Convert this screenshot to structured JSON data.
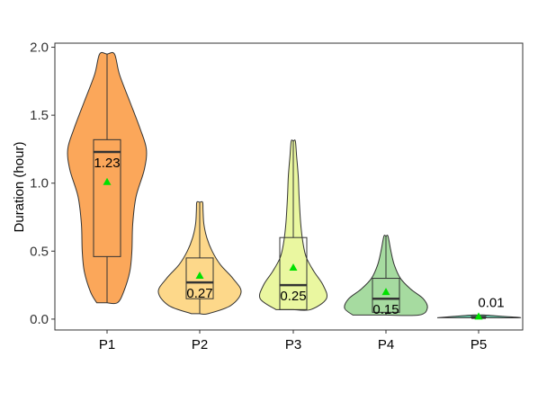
{
  "chart_data": {
    "type": "violin",
    "ylabel": "Duration (hour)",
    "xlabel": "",
    "ylim": [
      -0.08,
      2.03
    ],
    "yticks": [
      0.0,
      0.5,
      1.0,
      1.5,
      2.0
    ],
    "ytick_labels": [
      "0.0",
      "0.5",
      "1.0",
      "1.5",
      "2.0"
    ],
    "grid": false,
    "legend": "none",
    "mean_marker": {
      "shape": "triangle",
      "color": "#00e000"
    },
    "categories": [
      "P1",
      "P2",
      "P3",
      "P4",
      "P5"
    ],
    "series": [
      {
        "category": "P1",
        "color": "#fba75a",
        "min": 0.12,
        "q1": 0.46,
        "median": 1.23,
        "q3": 1.32,
        "max": 1.95,
        "mean": 1.01,
        "median_label": "1.23",
        "density": [
          [
            0.12,
            0.25
          ],
          [
            0.2,
            0.4
          ],
          [
            0.35,
            0.55
          ],
          [
            0.5,
            0.6
          ],
          [
            0.7,
            0.62
          ],
          [
            0.9,
            0.7
          ],
          [
            1.1,
            0.9
          ],
          [
            1.25,
            0.95
          ],
          [
            1.4,
            0.8
          ],
          [
            1.6,
            0.55
          ],
          [
            1.8,
            0.3
          ],
          [
            1.95,
            0.18
          ]
        ]
      },
      {
        "category": "P2",
        "color": "#fdd88a",
        "min": 0.04,
        "q1": 0.15,
        "median": 0.27,
        "q3": 0.45,
        "max": 0.86,
        "mean": 0.32,
        "median_label": "0.27",
        "density": [
          [
            0.04,
            0.2
          ],
          [
            0.1,
            0.75
          ],
          [
            0.2,
            1.0
          ],
          [
            0.3,
            0.8
          ],
          [
            0.4,
            0.5
          ],
          [
            0.5,
            0.3
          ],
          [
            0.6,
            0.17
          ],
          [
            0.7,
            0.1
          ],
          [
            0.8,
            0.08
          ],
          [
            0.86,
            0.07
          ]
        ]
      },
      {
        "category": "P3",
        "color": "#eaf7a0",
        "min": 0.07,
        "q1": 0.07,
        "median": 0.25,
        "q3": 0.6,
        "max": 1.31,
        "mean": 0.38,
        "median_label": "0.25",
        "density": [
          [
            0.07,
            0.42
          ],
          [
            0.15,
            0.8
          ],
          [
            0.25,
            0.72
          ],
          [
            0.35,
            0.5
          ],
          [
            0.45,
            0.32
          ],
          [
            0.55,
            0.24
          ],
          [
            0.7,
            0.18
          ],
          [
            0.9,
            0.14
          ],
          [
            1.05,
            0.12
          ],
          [
            1.2,
            0.08
          ],
          [
            1.31,
            0.05
          ]
        ]
      },
      {
        "category": "P4",
        "color": "#a6dba0",
        "min": 0.03,
        "q1": 0.05,
        "median": 0.15,
        "q3": 0.3,
        "max": 0.61,
        "mean": 0.2,
        "median_label": "0.15",
        "density": [
          [
            0.03,
            0.8
          ],
          [
            0.08,
            1.0
          ],
          [
            0.15,
            0.9
          ],
          [
            0.22,
            0.6
          ],
          [
            0.3,
            0.35
          ],
          [
            0.4,
            0.2
          ],
          [
            0.5,
            0.12
          ],
          [
            0.61,
            0.05
          ]
        ]
      },
      {
        "category": "P5",
        "color": "#67c2a5",
        "min": 0.01,
        "q1": 0.01,
        "median": 0.01,
        "q3": 0.02,
        "max": 0.03,
        "mean": 0.02,
        "median_label": "0.01",
        "density": [
          [
            0.01,
            1.0
          ],
          [
            0.02,
            0.6
          ],
          [
            0.03,
            0.15
          ]
        ]
      }
    ]
  }
}
